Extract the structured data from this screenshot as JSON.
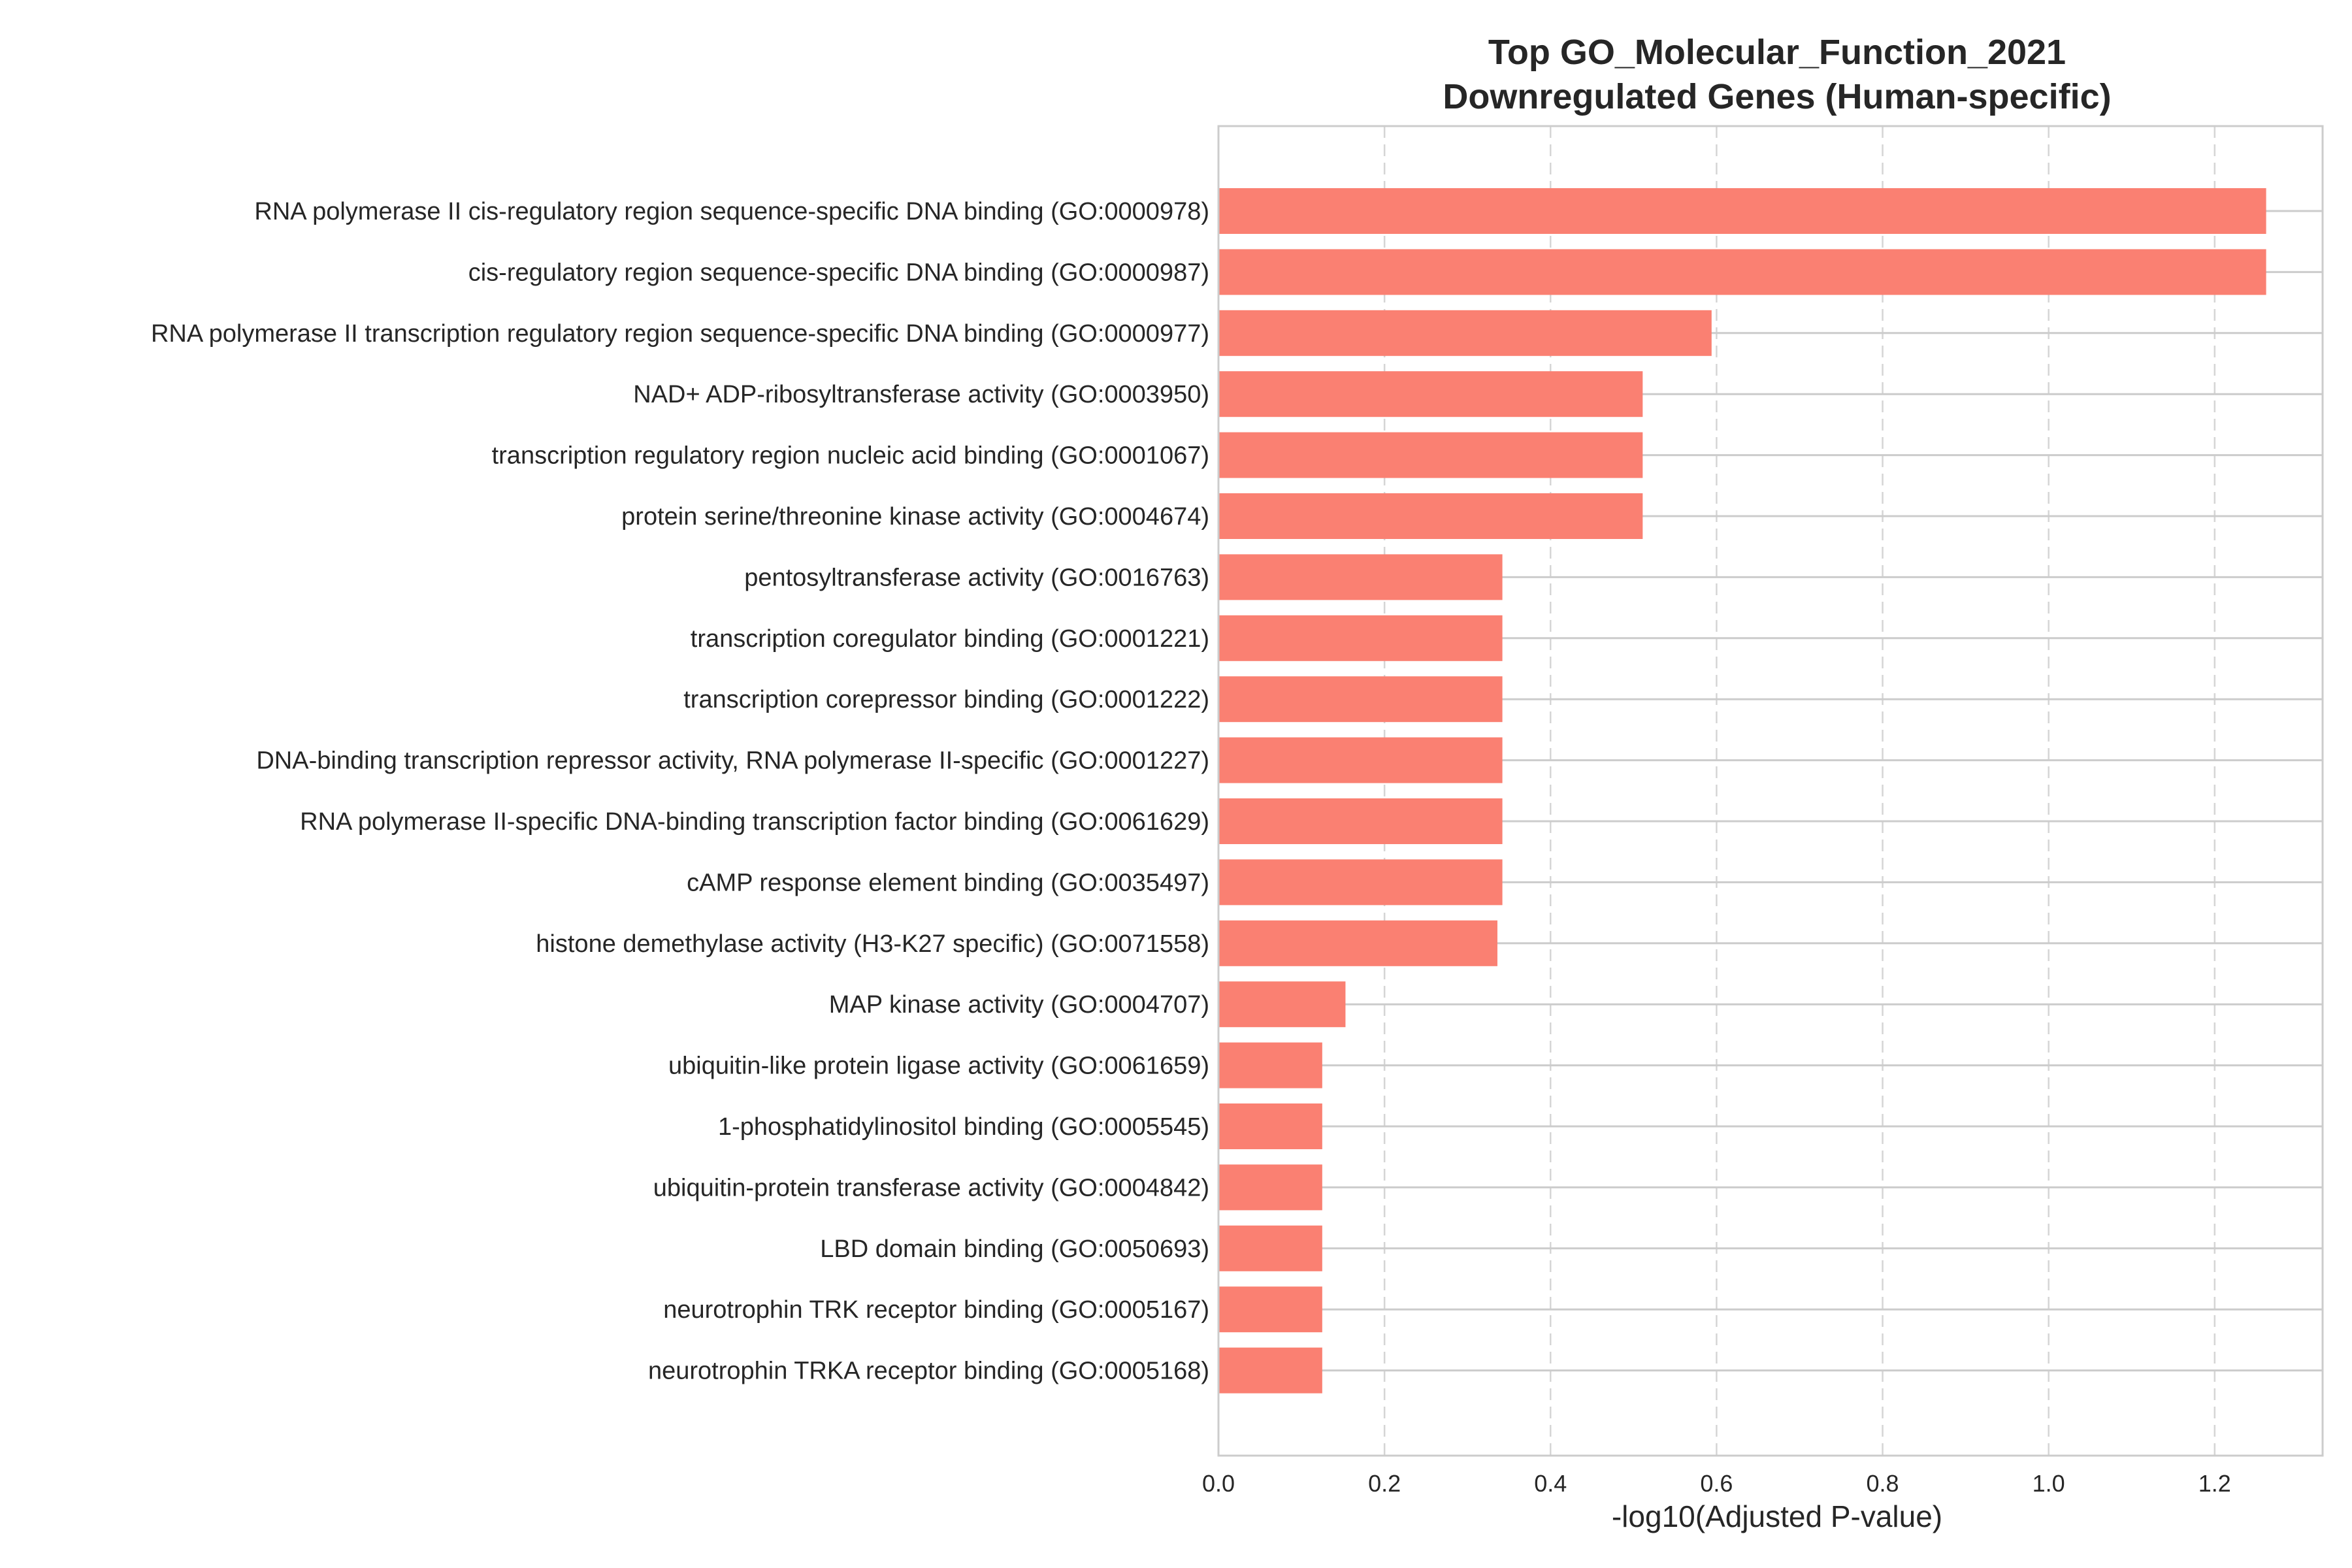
{
  "colors": {
    "bar": "#fa8072",
    "grid_h": "#cccccc",
    "grid_v": "#d5d5d5",
    "frame": "#cccccc",
    "text": "#262626"
  },
  "chart_data": {
    "type": "bar",
    "orientation": "horizontal",
    "title_lines": [
      "Top GO_Molecular_Function_2021",
      "Downregulated Genes (Human-specific)"
    ],
    "xlabel": "-log10(Adjusted P-value)",
    "ylabel": "",
    "xlim": [
      0,
      1.33
    ],
    "xticks": [
      0.0,
      0.2,
      0.4,
      0.6,
      0.8,
      1.0,
      1.2
    ],
    "xtick_labels": [
      "0.0",
      "0.2",
      "0.4",
      "0.6",
      "0.8",
      "1.0",
      "1.2"
    ],
    "grid": "on",
    "categories": [
      "RNA polymerase II cis-regulatory region sequence-specific DNA binding (GO:0000978)",
      "cis-regulatory region sequence-specific DNA binding (GO:0000987)",
      "RNA polymerase II transcription regulatory region sequence-specific DNA binding (GO:0000977)",
      "NAD+ ADP-ribosyltransferase activity (GO:0003950)",
      "transcription regulatory region nucleic acid binding (GO:0001067)",
      "protein serine/threonine kinase activity (GO:0004674)",
      "pentosyltransferase activity (GO:0016763)",
      "transcription coregulator binding (GO:0001221)",
      "transcription corepressor binding (GO:0001222)",
      "DNA-binding transcription repressor activity, RNA polymerase II-specific (GO:0001227)",
      "RNA polymerase II-specific DNA-binding transcription factor binding (GO:0061629)",
      "cAMP response element binding (GO:0035497)",
      "histone demethylase activity (H3-K27 specific) (GO:0071558)",
      "MAP kinase activity (GO:0004707)",
      "ubiquitin-like protein ligase activity (GO:0061659)",
      "1-phosphatidylinositol binding (GO:0005545)",
      "ubiquitin-protein transferase activity (GO:0004842)",
      "LBD domain binding (GO:0050693)",
      "neurotrophin TRK receptor binding (GO:0005167)",
      "neurotrophin TRKA receptor binding (GO:0005168)"
    ],
    "values": [
      1.262,
      1.262,
      0.594,
      0.511,
      0.511,
      0.511,
      0.342,
      0.342,
      0.342,
      0.342,
      0.342,
      0.342,
      0.336,
      0.153,
      0.125,
      0.125,
      0.125,
      0.125,
      0.125,
      0.125
    ]
  }
}
